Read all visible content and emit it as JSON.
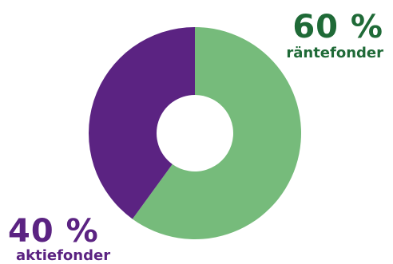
{
  "chart_data": {
    "type": "pie",
    "donut": true,
    "slices": [
      {
        "label": "räntefonder",
        "value": 60,
        "value_text": "60 %",
        "color": "#76bb7b",
        "text_color": "#1f6a37"
      },
      {
        "label": "aktiefonder",
        "value": 40,
        "value_text": "40 %",
        "color": "#5b2382",
        "text_color": "#5b2382"
      }
    ],
    "legend": "none"
  }
}
